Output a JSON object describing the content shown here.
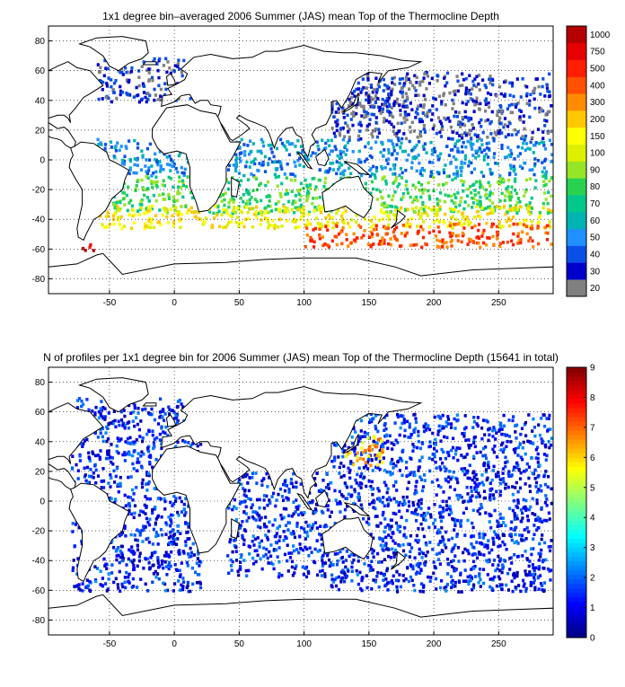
{
  "colors": {
    "ocean_bg": "#ffffff",
    "coast": "#000000",
    "grid": "#000000",
    "land_fill": "none"
  },
  "chart_data": [
    {
      "type": "heatmap",
      "title": "1x1 degree bin–averaged 2006 Summer (JAS) mean Top of the Thermocline Depth",
      "xlabel": "",
      "ylabel": "",
      "xlim": [
        -97,
        292
      ],
      "ylim": [
        -90,
        90
      ],
      "x_ticks": [
        -50,
        0,
        50,
        100,
        150,
        200,
        250
      ],
      "y_ticks": [
        80,
        60,
        40,
        20,
        0,
        -20,
        -40,
        -60,
        -80
      ],
      "grid": true,
      "colorbar": {
        "type": "discrete",
        "labels": [
          "20",
          "30",
          "40",
          "50",
          "60",
          "70",
          "80",
          "90",
          "100",
          "150",
          "200",
          "300",
          "400",
          "500",
          "750",
          "1000"
        ],
        "colors": [
          "#808080",
          "#0000cd",
          "#0a50e6",
          "#1e90ff",
          "#00b4b4",
          "#00c88c",
          "#28d250",
          "#96e628",
          "#dcf000",
          "#ffff00",
          "#ffc800",
          "#ff8c00",
          "#ff5000",
          "#ff1e00",
          "#e60000",
          "#b40000"
        ]
      },
      "regions": [
        {
          "x": [
            100,
            180
          ],
          "y": [
            30,
            50
          ],
          "level": 0
        },
        {
          "x": [
            -60,
            20
          ],
          "y": [
            40,
            70
          ],
          "level": 1
        },
        {
          "x": [
            120,
            290
          ],
          "y": [
            15,
            60
          ],
          "level": 1
        },
        {
          "x": [
            -60,
            290
          ],
          "y": [
            -10,
            15
          ],
          "level": 3
        },
        {
          "x": [
            -50,
            290
          ],
          "y": [
            -35,
            -10
          ],
          "level": 6
        },
        {
          "x": [
            -60,
            290
          ],
          "y": [
            -45,
            -30
          ],
          "level": 9
        },
        {
          "x": [
            100,
            290
          ],
          "y": [
            -58,
            -42
          ],
          "level": 12
        },
        {
          "x": [
            -75,
            -60
          ],
          "y": [
            -60,
            -55
          ],
          "level": 14
        }
      ]
    },
    {
      "type": "heatmap",
      "title": "N of profiles per 1x1 degree bin for 2006 Summer (JAS) mean Top of the Thermocline Depth  (15641 in total)",
      "xlabel": "",
      "ylabel": "",
      "xlim": [
        -97,
        292
      ],
      "ylim": [
        -90,
        90
      ],
      "x_ticks": [
        -50,
        0,
        50,
        100,
        150,
        200,
        250
      ],
      "y_ticks": [
        80,
        60,
        40,
        20,
        0,
        -20,
        -40,
        -60,
        -80
      ],
      "grid": true,
      "total_profiles": 15641,
      "colorbar": {
        "type": "continuous",
        "min": 0,
        "max": 9,
        "ticks": [
          0,
          1,
          2,
          3,
          4,
          5,
          6,
          7,
          8,
          9
        ],
        "colormap": "jet"
      },
      "regions": [
        {
          "x": [
            -80,
            20
          ],
          "y": [
            -60,
            70
          ],
          "value": 1
        },
        {
          "x": [
            40,
            120
          ],
          "y": [
            -50,
            20
          ],
          "value": 1
        },
        {
          "x": [
            120,
            290
          ],
          "y": [
            -60,
            60
          ],
          "value": 1
        },
        {
          "x": [
            130,
            160
          ],
          "y": [
            25,
            45
          ],
          "value": 6
        }
      ]
    }
  ]
}
